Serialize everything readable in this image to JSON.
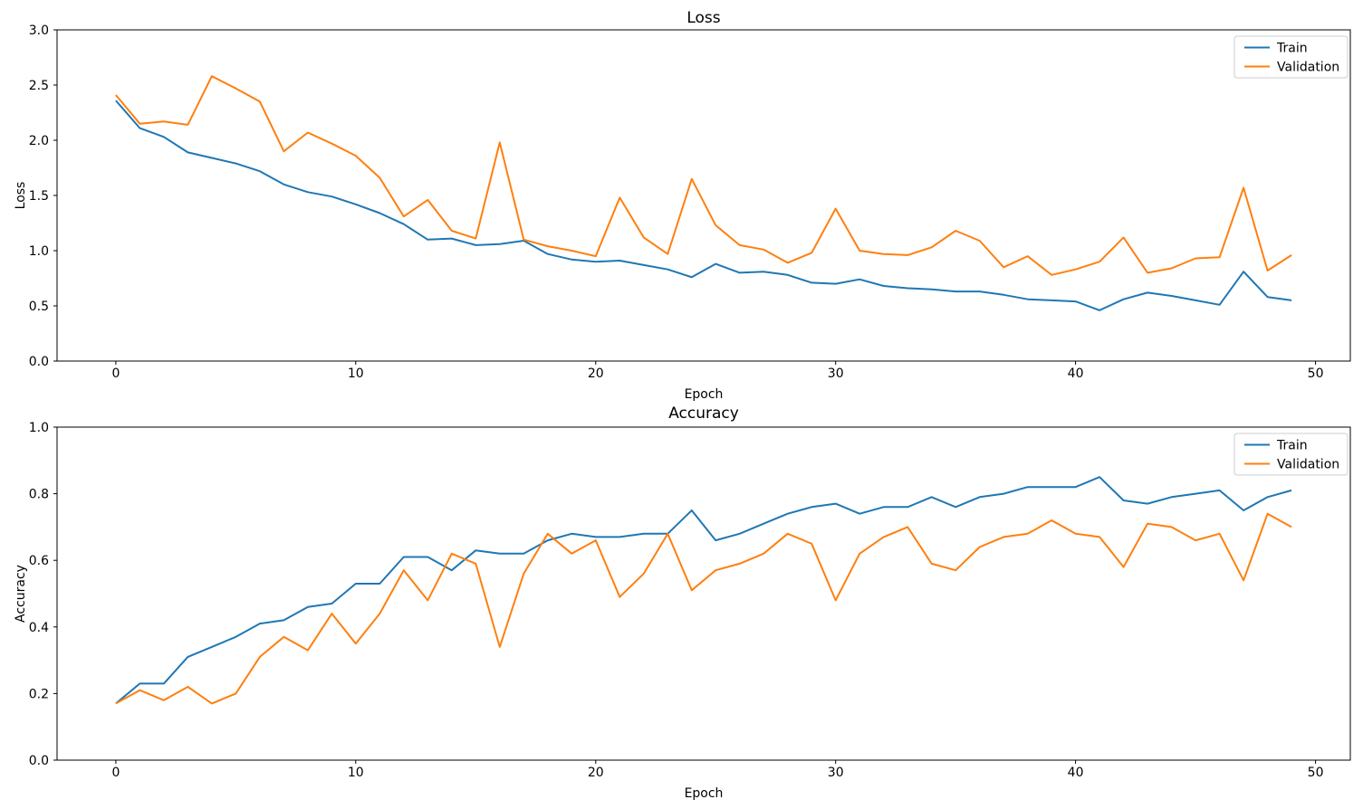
{
  "figure": {
    "background": "#ffffff",
    "axis_color": "#000000"
  },
  "colors": {
    "train": "#1f77b4",
    "validation": "#ff7f0e"
  },
  "chart_data": [
    {
      "id": "loss",
      "type": "line",
      "title": "Loss",
      "xlabel": "Epoch",
      "ylabel": "Loss",
      "xlim": [
        -2.45,
        51.45
      ],
      "ylim": [
        0.0,
        3.0
      ],
      "grid": false,
      "legend_position": "upper right",
      "legend_labels": [
        "Train",
        "Validation"
      ],
      "xticks": [
        {
          "v": 0,
          "label": "0"
        },
        {
          "v": 10,
          "label": "10"
        },
        {
          "v": 20,
          "label": "20"
        },
        {
          "v": 30,
          "label": "30"
        },
        {
          "v": 40,
          "label": "40"
        },
        {
          "v": 50,
          "label": "50"
        }
      ],
      "yticks": [
        {
          "v": 0.0,
          "label": "0.0"
        },
        {
          "v": 0.5,
          "label": "0.5"
        },
        {
          "v": 1.0,
          "label": "1.0"
        },
        {
          "v": 1.5,
          "label": "1.5"
        },
        {
          "v": 2.0,
          "label": "2.0"
        },
        {
          "v": 2.5,
          "label": "2.5"
        },
        {
          "v": 3.0,
          "label": "3.0"
        }
      ],
      "x": [
        0,
        1,
        2,
        3,
        4,
        5,
        6,
        7,
        8,
        9,
        10,
        11,
        12,
        13,
        14,
        15,
        16,
        17,
        18,
        19,
        20,
        21,
        22,
        23,
        24,
        25,
        26,
        27,
        28,
        29,
        30,
        31,
        32,
        33,
        34,
        35,
        36,
        37,
        38,
        39,
        40,
        41,
        42,
        43,
        44,
        45,
        46,
        47,
        48,
        49
      ],
      "series": [
        {
          "name": "Train",
          "color": "#1f77b4",
          "values": [
            2.36,
            2.11,
            2.03,
            1.89,
            1.84,
            1.79,
            1.72,
            1.6,
            1.53,
            1.49,
            1.42,
            1.34,
            1.24,
            1.1,
            1.11,
            1.05,
            1.06,
            1.09,
            0.97,
            0.92,
            0.9,
            0.91,
            0.87,
            0.83,
            0.76,
            0.88,
            0.8,
            0.81,
            0.78,
            0.71,
            0.7,
            0.74,
            0.68,
            0.66,
            0.65,
            0.63,
            0.63,
            0.6,
            0.56,
            0.55,
            0.54,
            0.46,
            0.56,
            0.62,
            0.59,
            0.55,
            0.51,
            0.81,
            0.58,
            0.55
          ]
        },
        {
          "name": "Validation",
          "color": "#ff7f0e",
          "values": [
            2.41,
            2.15,
            2.17,
            2.14,
            2.58,
            2.47,
            2.35,
            1.9,
            2.07,
            1.97,
            1.86,
            1.66,
            1.31,
            1.46,
            1.18,
            1.11,
            1.98,
            1.1,
            1.04,
            1.0,
            0.95,
            1.48,
            1.12,
            0.97,
            1.65,
            1.23,
            1.05,
            1.01,
            0.89,
            0.98,
            1.38,
            1.0,
            0.97,
            0.96,
            1.03,
            1.18,
            1.09,
            0.85,
            0.95,
            0.78,
            0.83,
            0.9,
            1.12,
            0.8,
            0.84,
            0.93,
            0.94,
            1.57,
            0.82,
            0.96
          ]
        }
      ]
    },
    {
      "id": "accuracy",
      "type": "line",
      "title": "Accuracy",
      "xlabel": "Epoch",
      "ylabel": "Accuracy",
      "xlim": [
        -2.45,
        51.45
      ],
      "ylim": [
        0.0,
        1.0
      ],
      "grid": false,
      "legend_position": "upper right",
      "legend_labels": [
        "Train",
        "Validation"
      ],
      "xticks": [
        {
          "v": 0,
          "label": "0"
        },
        {
          "v": 10,
          "label": "10"
        },
        {
          "v": 20,
          "label": "20"
        },
        {
          "v": 30,
          "label": "30"
        },
        {
          "v": 40,
          "label": "40"
        },
        {
          "v": 50,
          "label": "50"
        }
      ],
      "yticks": [
        {
          "v": 0.0,
          "label": "0.0"
        },
        {
          "v": 0.2,
          "label": "0.2"
        },
        {
          "v": 0.4,
          "label": "0.4"
        },
        {
          "v": 0.6,
          "label": "0.6"
        },
        {
          "v": 0.8,
          "label": "0.8"
        },
        {
          "v": 1.0,
          "label": "1.0"
        }
      ],
      "x": [
        0,
        1,
        2,
        3,
        4,
        5,
        6,
        7,
        8,
        9,
        10,
        11,
        12,
        13,
        14,
        15,
        16,
        17,
        18,
        19,
        20,
        21,
        22,
        23,
        24,
        25,
        26,
        27,
        28,
        29,
        30,
        31,
        32,
        33,
        34,
        35,
        36,
        37,
        38,
        39,
        40,
        41,
        42,
        43,
        44,
        45,
        46,
        47,
        48,
        49
      ],
      "series": [
        {
          "name": "Train",
          "color": "#1f77b4",
          "values": [
            0.17,
            0.23,
            0.23,
            0.31,
            0.34,
            0.37,
            0.41,
            0.42,
            0.46,
            0.47,
            0.53,
            0.53,
            0.61,
            0.61,
            0.57,
            0.63,
            0.62,
            0.62,
            0.66,
            0.68,
            0.67,
            0.67,
            0.68,
            0.68,
            0.75,
            0.66,
            0.68,
            0.71,
            0.74,
            0.76,
            0.77,
            0.74,
            0.76,
            0.76,
            0.79,
            0.76,
            0.79,
            0.8,
            0.82,
            0.82,
            0.82,
            0.85,
            0.78,
            0.77,
            0.79,
            0.8,
            0.81,
            0.75,
            0.79,
            0.81
          ]
        },
        {
          "name": "Validation",
          "color": "#ff7f0e",
          "values": [
            0.17,
            0.21,
            0.18,
            0.22,
            0.17,
            0.2,
            0.31,
            0.37,
            0.33,
            0.44,
            0.35,
            0.44,
            0.57,
            0.48,
            0.62,
            0.59,
            0.34,
            0.56,
            0.68,
            0.62,
            0.66,
            0.49,
            0.56,
            0.68,
            0.51,
            0.57,
            0.59,
            0.62,
            0.68,
            0.65,
            0.48,
            0.62,
            0.67,
            0.7,
            0.59,
            0.57,
            0.64,
            0.67,
            0.68,
            0.72,
            0.68,
            0.67,
            0.58,
            0.71,
            0.7,
            0.66,
            0.68,
            0.54,
            0.74,
            0.7
          ]
        }
      ]
    }
  ]
}
